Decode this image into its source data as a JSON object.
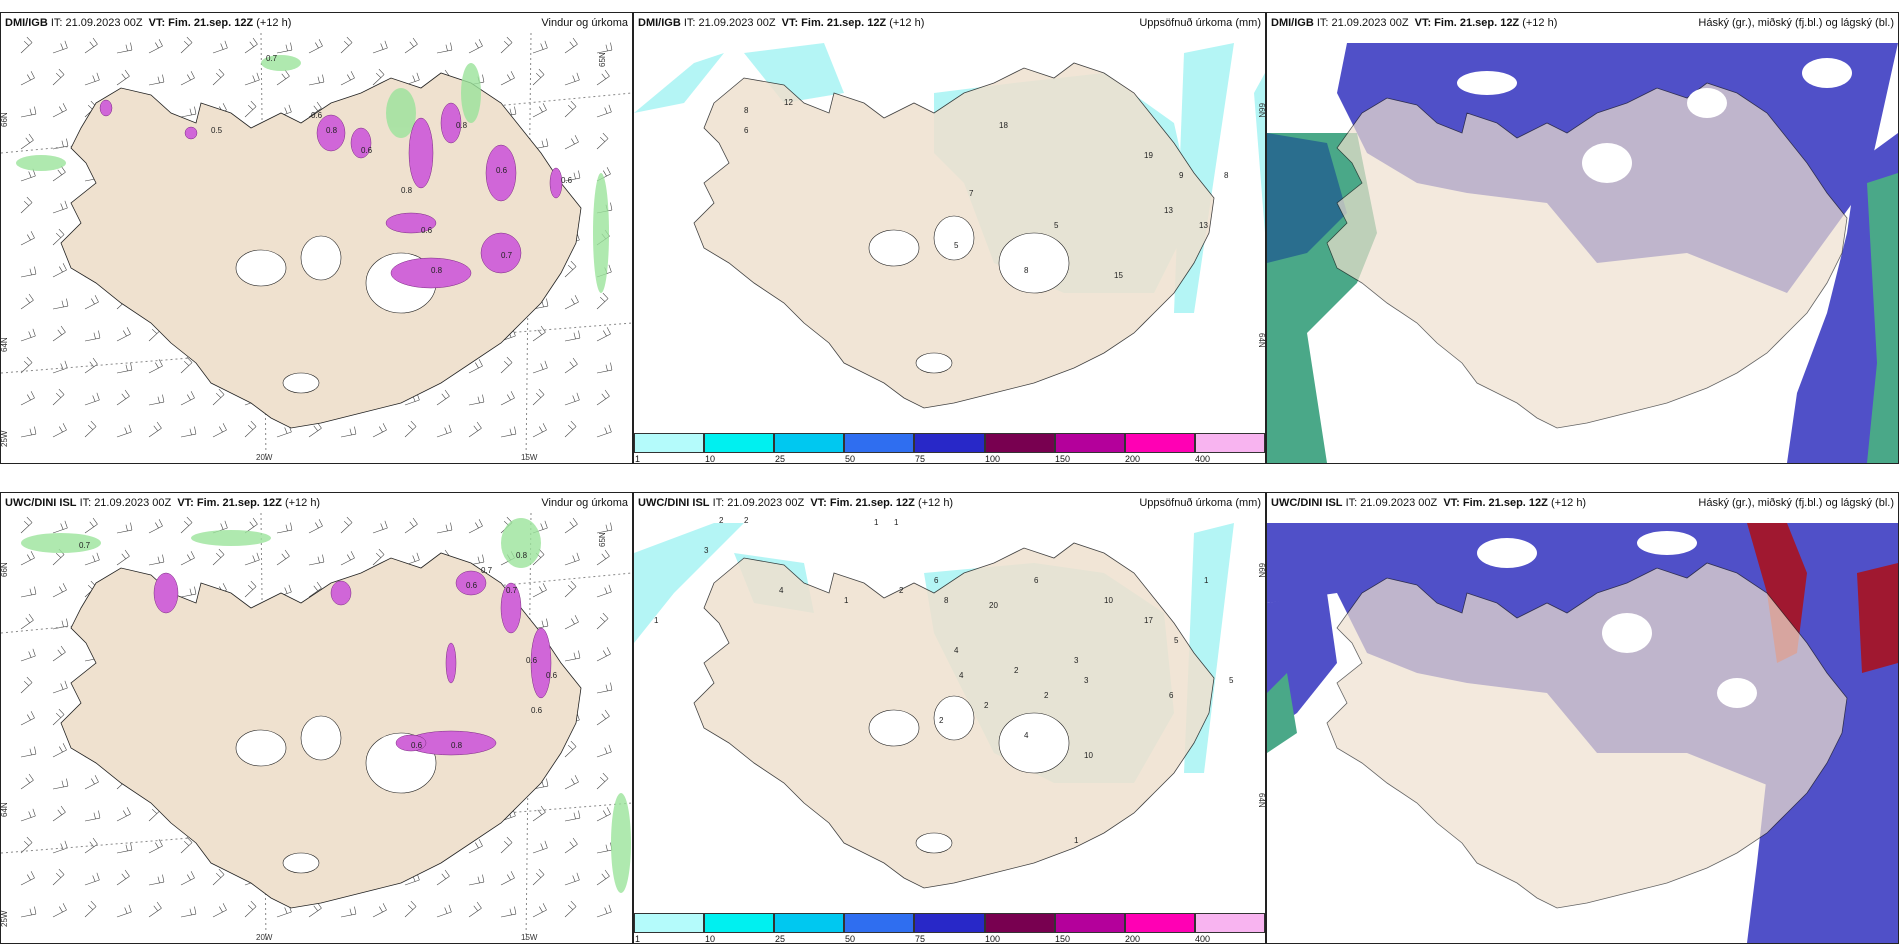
{
  "rows": [
    {
      "model": "DMI/IGB",
      "panels": [
        {
          "model": "DMI/IGB",
          "it_label": "IT:",
          "it_value": "21.09.2023 00Z",
          "vt_label": "VT:",
          "vt_value": "Fim. 21.sep. 12Z",
          "lead": "(+12 h)",
          "right_title": "Vindur og úrkoma",
          "values": [
            "0.7",
            "0.5",
            "0.8",
            "0.8",
            "0.6",
            "0.8",
            "0.6",
            "0.6",
            "0.6",
            "0.8",
            "0.7",
            "0.6"
          ],
          "lat_labels": [
            "66N",
            "64N",
            "65N"
          ],
          "lon_labels": [
            "20W",
            "15W",
            "25W"
          ]
        },
        {
          "model": "DMI/IGB",
          "it_label": "IT:",
          "it_value": "21.09.2023 00Z",
          "vt_label": "VT:",
          "vt_value": "Fim. 21.sep. 12Z",
          "lead": "(+12 h)",
          "right_title": "Uppsöfnuð úrkoma (mm)",
          "values": [
            "12",
            "8",
            "6",
            "18",
            "7",
            "5",
            "19",
            "9",
            "8",
            "13",
            "13",
            "15",
            "5",
            "8"
          ],
          "lat_labels": [
            "66N",
            "64N"
          ]
        },
        {
          "model": "DMI/IGB",
          "it_label": "IT:",
          "it_value": "21.09.2023 00Z",
          "vt_label": "VT:",
          "vt_value": "Fim. 21.sep. 12Z",
          "lead": "(+12 h)",
          "right_title": "Háský (gr.), miðský (fj.bl.) og lágský (bl.)"
        }
      ]
    },
    {
      "model": "UWC/DINI ISL",
      "panels": [
        {
          "model": "UWC/DINI ISL",
          "it_label": "IT:",
          "it_value": "21.09.2023 00Z",
          "vt_label": "VT:",
          "vt_value": "Fim. 21.sep. 12Z",
          "lead": "(+12 h)",
          "right_title": "Vindur og úrkoma",
          "values": [
            "0.7",
            "0.8",
            "0.7",
            "0.6",
            "0.6",
            "0.6",
            "0.6",
            "0.8",
            "0.7",
            "0.6"
          ],
          "lat_labels": [
            "66N",
            "64N",
            "65N"
          ],
          "lon_labels": [
            "20W",
            "15W",
            "25W"
          ]
        },
        {
          "model": "UWC/DINI ISL",
          "it_label": "IT:",
          "it_value": "21.09.2023 00Z",
          "vt_label": "VT:",
          "vt_value": "Fim. 21.sep. 12Z",
          "lead": "(+12 h)",
          "right_title": "Uppsöfnuð úrkoma (mm)",
          "values": [
            "2",
            "2",
            "1",
            "1",
            "1",
            "3",
            "4",
            "1",
            "6",
            "6",
            "10",
            "8",
            "2",
            "20",
            "17",
            "5",
            "4",
            "3",
            "2",
            "2",
            "3",
            "10",
            "6",
            "2",
            "1",
            "1",
            "5",
            "2",
            "4",
            "4"
          ],
          "lat_labels": [
            "66N",
            "64N"
          ]
        },
        {
          "model": "UWC/DINI ISL",
          "it_label": "IT:",
          "it_value": "21.09.2023 00Z",
          "vt_label": "VT:",
          "vt_value": "Fim. 21.sep. 12Z",
          "lead": "(+12 h)",
          "right_title": "Háský (gr.), miðský (fj.bl.) og lágský (bl.)"
        }
      ]
    }
  ],
  "colorbar": {
    "colors": [
      "#b4fbfb",
      "#00f0f0",
      "#00c8f0",
      "#2f6ef0",
      "#2828c8",
      "#780050",
      "#b4009b",
      "#ff00b4",
      "#f8b4f0"
    ],
    "ticks": [
      "1",
      "10",
      "25",
      "50",
      "75",
      "100",
      "150",
      "200",
      "400"
    ]
  },
  "colors": {
    "land": "#efe1cf",
    "precip_pink": "#d066d8",
    "precip_green": "#9be39b",
    "accum_cyan": "#b4f5f5",
    "cloud_high": "#4aa888",
    "cloud_mid": "#5050c8",
    "cloud_low": "#4040c0",
    "cloud_red": "#a01830"
  }
}
